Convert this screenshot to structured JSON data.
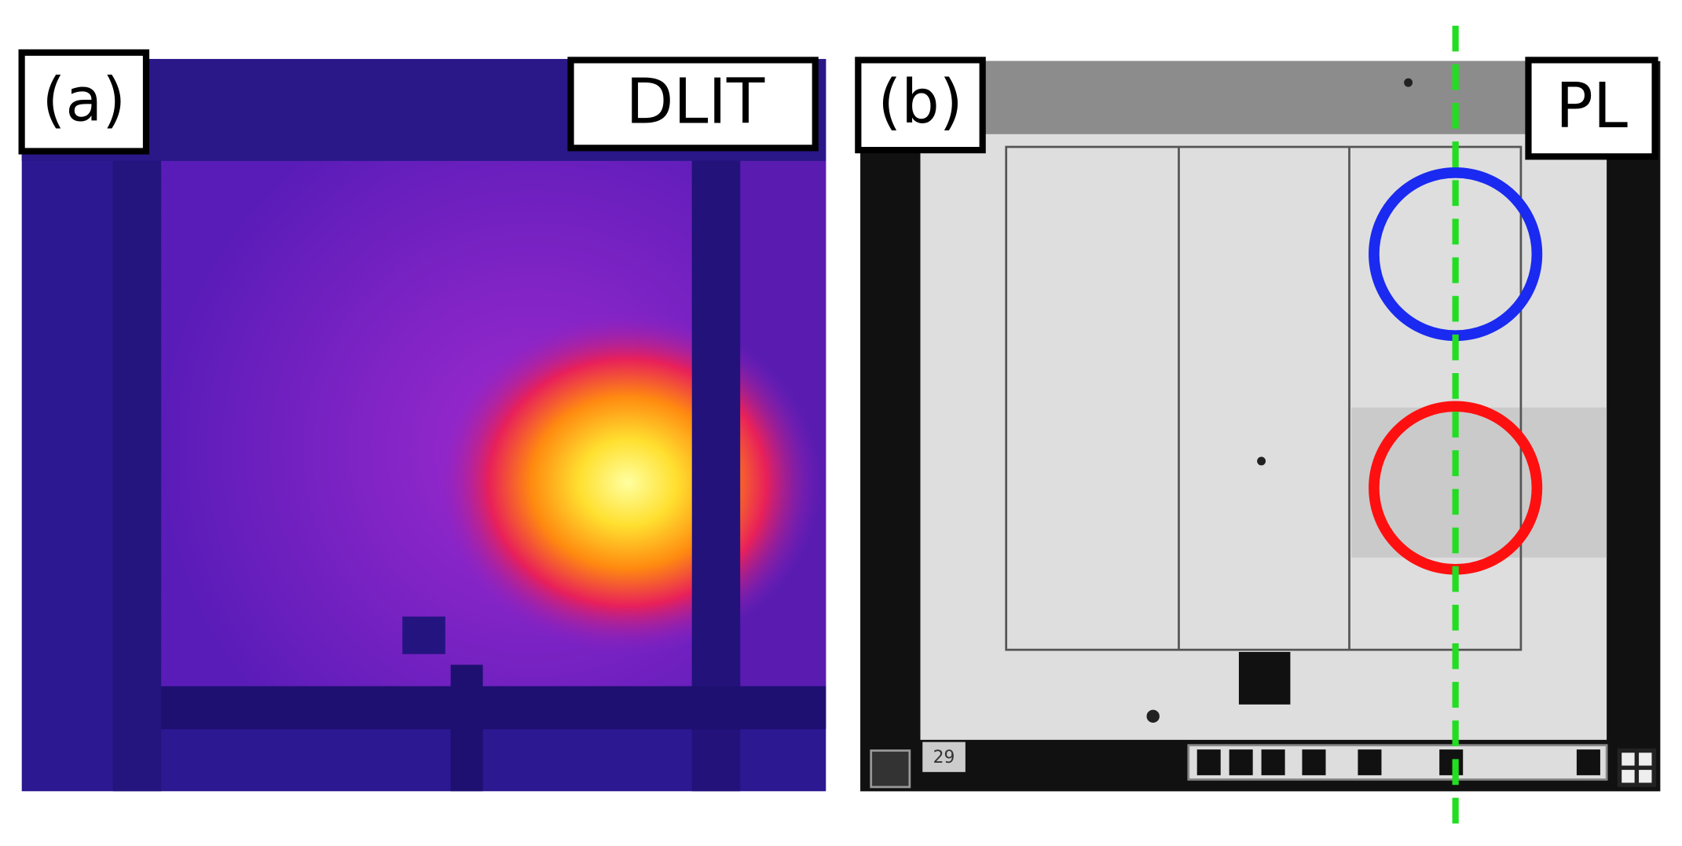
{
  "panels": [
    {
      "label": "(a)",
      "tag": "DLIT"
    },
    {
      "label": "(b)",
      "tag": "PL",
      "marker": "29"
    }
  ]
}
